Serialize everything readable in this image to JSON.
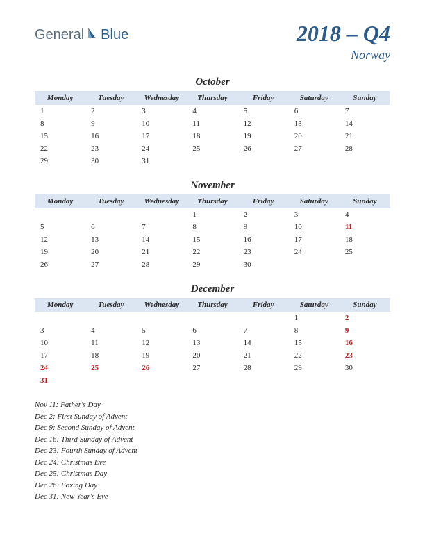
{
  "logo": {
    "part1": "General",
    "part2": "Blue"
  },
  "title": {
    "main": "2018 – Q4",
    "sub": "Norway"
  },
  "dayHeaders": [
    "Monday",
    "Tuesday",
    "Wednesday",
    "Thursday",
    "Friday",
    "Saturday",
    "Sunday"
  ],
  "colors": {
    "headerBg": "#dce6f2",
    "titleColor": "#2e5c8a",
    "textColor": "#2a2a2a",
    "holidayColor": "#c02020",
    "background": "#ffffff"
  },
  "fonts": {
    "body": "Georgia, 'Times New Roman', serif",
    "logo": "Arial, sans-serif",
    "titleSize": 32,
    "subtitleSize": 18,
    "monthNameSize": 15,
    "daySize": 11,
    "holidayListSize": 11
  },
  "months": [
    {
      "name": "October",
      "weeks": [
        [
          {
            "d": "1"
          },
          {
            "d": "2"
          },
          {
            "d": "3"
          },
          {
            "d": "4"
          },
          {
            "d": "5"
          },
          {
            "d": "6"
          },
          {
            "d": "7"
          }
        ],
        [
          {
            "d": "8"
          },
          {
            "d": "9"
          },
          {
            "d": "10"
          },
          {
            "d": "11"
          },
          {
            "d": "12"
          },
          {
            "d": "13"
          },
          {
            "d": "14"
          }
        ],
        [
          {
            "d": "15"
          },
          {
            "d": "16"
          },
          {
            "d": "17"
          },
          {
            "d": "18"
          },
          {
            "d": "19"
          },
          {
            "d": "20"
          },
          {
            "d": "21"
          }
        ],
        [
          {
            "d": "22"
          },
          {
            "d": "23"
          },
          {
            "d": "24"
          },
          {
            "d": "25"
          },
          {
            "d": "26"
          },
          {
            "d": "27"
          },
          {
            "d": "28"
          }
        ],
        [
          {
            "d": "29"
          },
          {
            "d": "30"
          },
          {
            "d": "31"
          },
          {
            "d": ""
          },
          {
            "d": ""
          },
          {
            "d": ""
          },
          {
            "d": ""
          }
        ]
      ]
    },
    {
      "name": "November",
      "weeks": [
        [
          {
            "d": ""
          },
          {
            "d": ""
          },
          {
            "d": ""
          },
          {
            "d": "1"
          },
          {
            "d": "2"
          },
          {
            "d": "3"
          },
          {
            "d": "4"
          }
        ],
        [
          {
            "d": "5"
          },
          {
            "d": "6"
          },
          {
            "d": "7"
          },
          {
            "d": "8"
          },
          {
            "d": "9"
          },
          {
            "d": "10"
          },
          {
            "d": "11",
            "h": true
          }
        ],
        [
          {
            "d": "12"
          },
          {
            "d": "13"
          },
          {
            "d": "14"
          },
          {
            "d": "15"
          },
          {
            "d": "16"
          },
          {
            "d": "17"
          },
          {
            "d": "18"
          }
        ],
        [
          {
            "d": "19"
          },
          {
            "d": "20"
          },
          {
            "d": "21"
          },
          {
            "d": "22"
          },
          {
            "d": "23"
          },
          {
            "d": "24"
          },
          {
            "d": "25"
          }
        ],
        [
          {
            "d": "26"
          },
          {
            "d": "27"
          },
          {
            "d": "28"
          },
          {
            "d": "29"
          },
          {
            "d": "30"
          },
          {
            "d": ""
          },
          {
            "d": ""
          }
        ]
      ]
    },
    {
      "name": "December",
      "weeks": [
        [
          {
            "d": ""
          },
          {
            "d": ""
          },
          {
            "d": ""
          },
          {
            "d": ""
          },
          {
            "d": ""
          },
          {
            "d": "1"
          },
          {
            "d": "2",
            "h": true
          }
        ],
        [
          {
            "d": "3"
          },
          {
            "d": "4"
          },
          {
            "d": "5"
          },
          {
            "d": "6"
          },
          {
            "d": "7"
          },
          {
            "d": "8"
          },
          {
            "d": "9",
            "h": true
          }
        ],
        [
          {
            "d": "10"
          },
          {
            "d": "11"
          },
          {
            "d": "12"
          },
          {
            "d": "13"
          },
          {
            "d": "14"
          },
          {
            "d": "15"
          },
          {
            "d": "16",
            "h": true
          }
        ],
        [
          {
            "d": "17"
          },
          {
            "d": "18"
          },
          {
            "d": "19"
          },
          {
            "d": "20"
          },
          {
            "d": "21"
          },
          {
            "d": "22"
          },
          {
            "d": "23",
            "h": true
          }
        ],
        [
          {
            "d": "24",
            "h": true
          },
          {
            "d": "25",
            "h": true
          },
          {
            "d": "26",
            "h": true
          },
          {
            "d": "27"
          },
          {
            "d": "28"
          },
          {
            "d": "29"
          },
          {
            "d": "30"
          }
        ],
        [
          {
            "d": "31",
            "h": true
          },
          {
            "d": ""
          },
          {
            "d": ""
          },
          {
            "d": ""
          },
          {
            "d": ""
          },
          {
            "d": ""
          },
          {
            "d": ""
          }
        ]
      ]
    }
  ],
  "holidays": [
    "Nov 11: Father's Day",
    "Dec 2: First Sunday of Advent",
    "Dec 9: Second Sunday of Advent",
    "Dec 16: Third Sunday of Advent",
    "Dec 23: Fourth Sunday of Advent",
    "Dec 24: Christmas Eve",
    "Dec 25: Christmas Day",
    "Dec 26: Boxing Day",
    "Dec 31: New Year's Eve"
  ]
}
